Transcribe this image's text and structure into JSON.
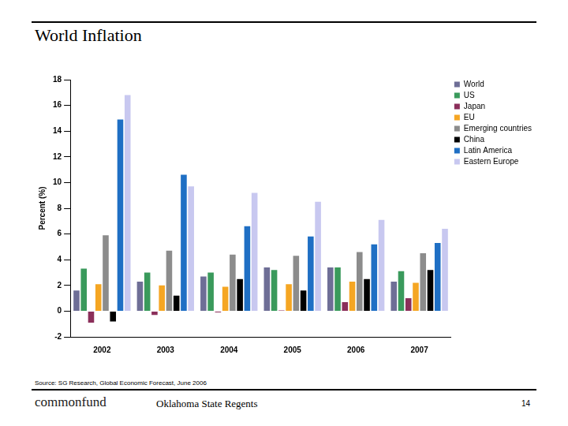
{
  "chart_data": {
    "type": "bar",
    "title": "World Inflation",
    "y_label": "Percent (%)",
    "categories": [
      "2002",
      "2003",
      "2004",
      "2005",
      "2006",
      "2007"
    ],
    "series": [
      {
        "name": "World",
        "color": "#6e6e96",
        "values": [
          1.6,
          2.3,
          2.7,
          3.4,
          3.4,
          2.3
        ]
      },
      {
        "name": "US",
        "color": "#3a9a5c",
        "values": [
          3.3,
          3.0,
          3.0,
          3.2,
          3.4,
          3.1
        ]
      },
      {
        "name": "Japan",
        "color": "#8b2f5a",
        "values": [
          -0.9,
          -0.3,
          -0.1,
          0.05,
          0.7,
          1.0
        ]
      },
      {
        "name": "EU",
        "color": "#f5a623",
        "values": [
          2.1,
          2.0,
          1.9,
          2.1,
          2.3,
          2.2
        ]
      },
      {
        "name": "Emerging countries",
        "color": "#8c8c8c",
        "values": [
          5.9,
          4.7,
          4.4,
          4.3,
          4.6,
          4.5
        ]
      },
      {
        "name": "China",
        "color": "#000000",
        "values": [
          -0.8,
          1.2,
          2.5,
          1.6,
          2.5,
          3.2
        ]
      },
      {
        "name": "Latin America",
        "color": "#1f6fc4",
        "values": [
          14.9,
          10.6,
          6.6,
          5.8,
          5.2,
          5.3
        ]
      },
      {
        "name": "Eastern Europe",
        "color": "#c8c8f0",
        "values": [
          16.8,
          9.7,
          9.2,
          8.5,
          7.1,
          6.4
        ]
      }
    ],
    "ylim": [
      -2,
      18
    ],
    "yticks": [
      -2,
      0,
      2,
      4,
      6,
      8,
      10,
      12,
      14,
      16,
      18
    ],
    "grid": false,
    "legend": "right"
  },
  "slide": {
    "source": "Source: SG Research, Global Economic Forecast, June 2006",
    "logo": "commonfund",
    "presenter": "Oklahoma State Regents",
    "page_number": "14"
  }
}
